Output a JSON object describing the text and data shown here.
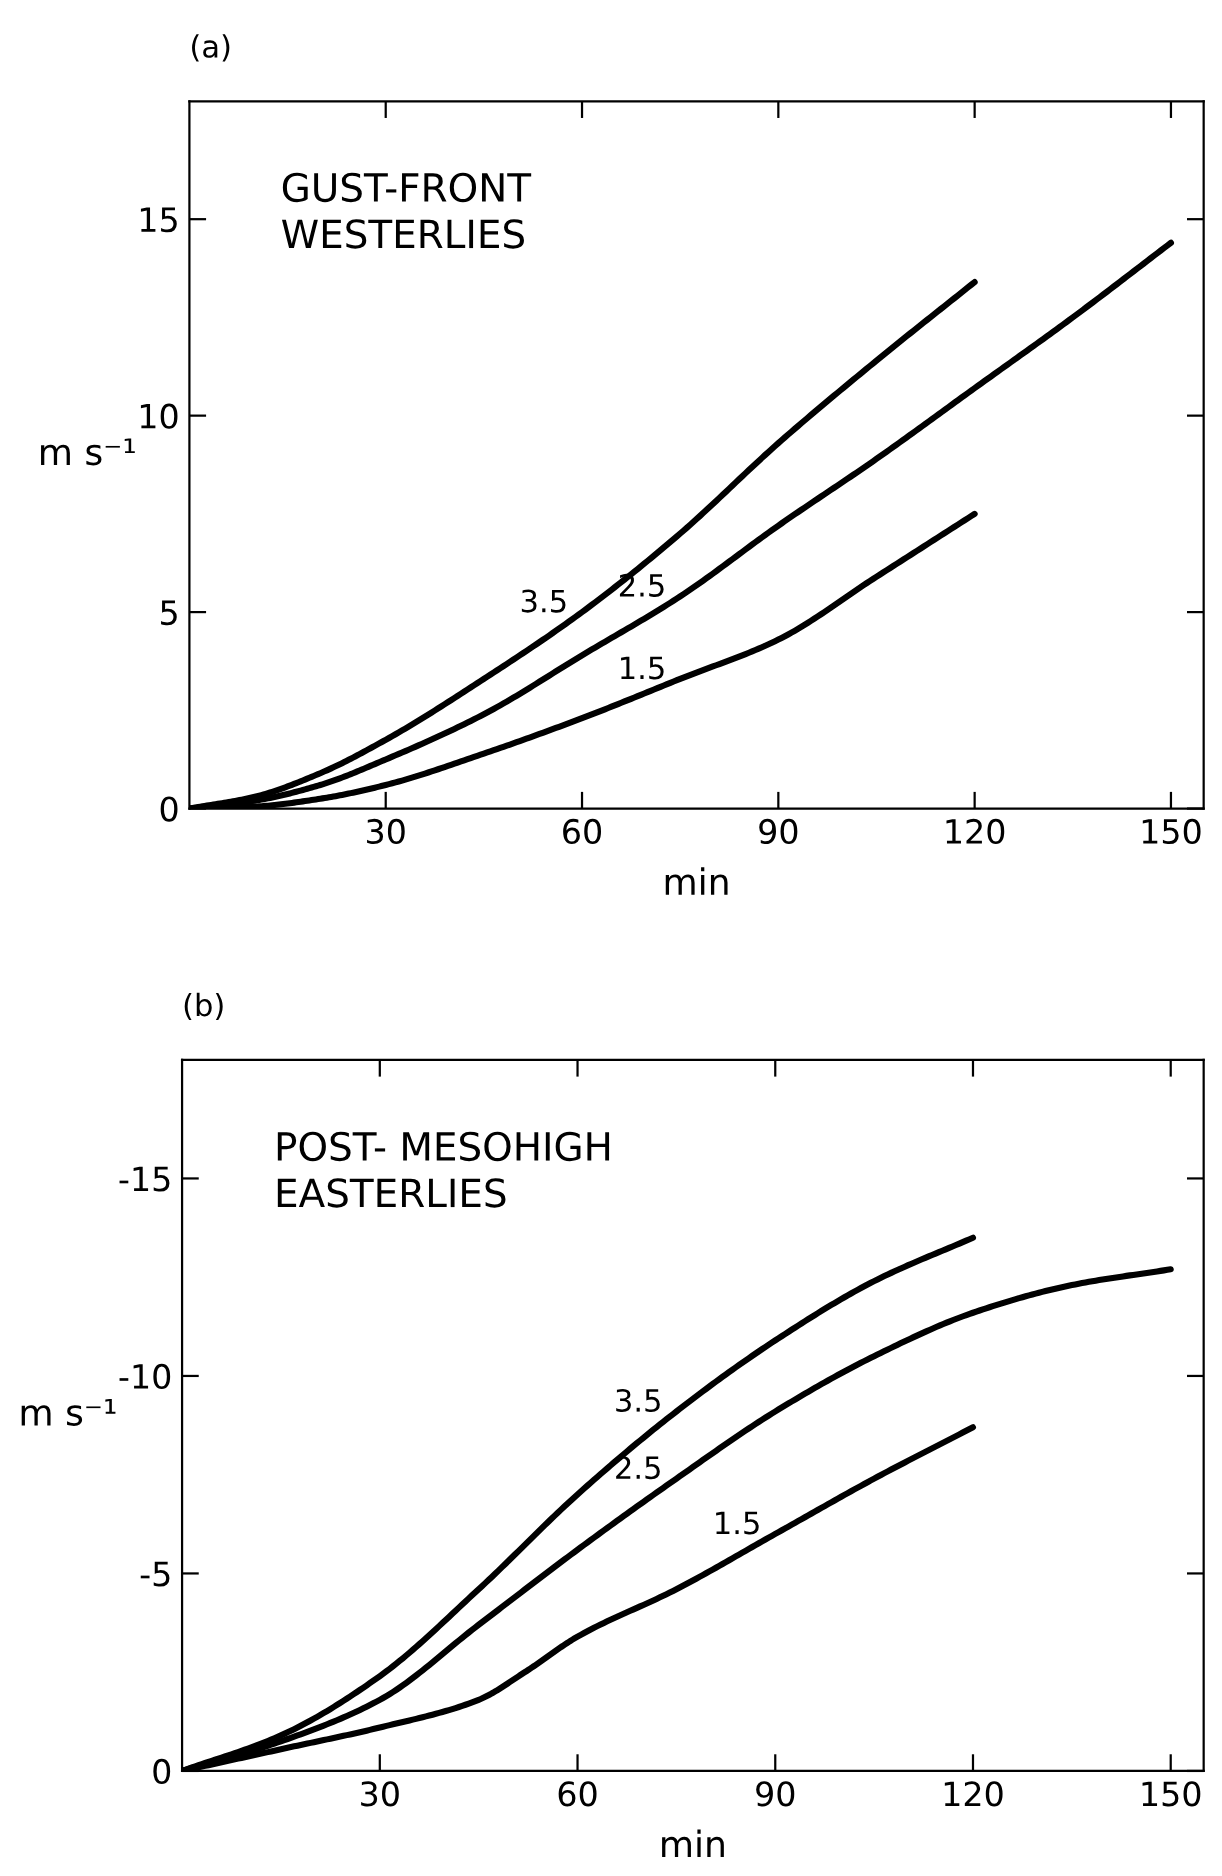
{
  "chart_data": [
    {
      "type": "line",
      "title": "(a)",
      "xlabel": "min",
      "ylabel": "m s⁻¹",
      "xlim": [
        0,
        155
      ],
      "ylim": [
        0,
        18
      ],
      "xticks": [
        30,
        60,
        90,
        120,
        150
      ],
      "yticks": [
        0,
        5,
        10,
        15
      ],
      "grid": false,
      "marker": "none",
      "line_style": "solid",
      "series": [
        {
          "color": "#000000",
          "x": [
            0,
            10,
            20,
            30,
            45,
            60,
            75,
            90,
            105,
            120
          ],
          "values": [
            0,
            0.3,
            0.9,
            1.75,
            3.3,
            5.0,
            7.0,
            9.3,
            11.4,
            13.4
          ]
        },
        {
          "color": "#000000",
          "x": [
            0,
            10,
            20,
            30,
            45,
            60,
            75,
            90,
            105,
            120,
            135,
            150
          ],
          "values": [
            0,
            0.2,
            0.6,
            1.25,
            2.4,
            3.9,
            5.4,
            7.2,
            8.9,
            10.7,
            12.5,
            14.4
          ]
        },
        {
          "color": "#000000",
          "x": [
            0,
            10,
            20,
            30,
            45,
            60,
            75,
            90,
            105,
            120
          ],
          "values": [
            0,
            0.05,
            0.25,
            0.6,
            1.4,
            2.3,
            3.3,
            4.3,
            5.9,
            7.5
          ]
        }
      ],
      "annotations": [
        "GUST-FRONT\nWESTERLIES",
        {
          "text": "3.5",
          "x": 60,
          "y": 5.0
        },
        {
          "text": "2.5",
          "x": 75,
          "y": 5.4
        },
        {
          "text": "1.5",
          "x": 75,
          "y": 3.3
        }
      ]
    },
    {
      "type": "line",
      "title": "(b)",
      "xlabel": "min",
      "ylabel": "m s⁻¹",
      "xlim": [
        0,
        155
      ],
      "ylim": [
        0,
        -18
      ],
      "xticks": [
        30,
        60,
        90,
        120,
        150
      ],
      "yticks": [
        0,
        -5,
        -10,
        -15
      ],
      "grid": false,
      "marker": "none",
      "line_style": "solid",
      "series": [
        {
          "color": "#000000",
          "x": [
            0,
            15,
            30,
            45,
            60,
            75,
            90,
            105,
            120
          ],
          "values": [
            0,
            -0.9,
            -2.4,
            -4.6,
            -7.0,
            -9.1,
            -10.9,
            -12.4,
            -13.5
          ]
        },
        {
          "color": "#000000",
          "x": [
            0,
            15,
            30,
            45,
            60,
            75,
            90,
            105,
            120,
            135,
            150
          ],
          "values": [
            0,
            -0.75,
            -1.8,
            -3.7,
            -5.6,
            -7.4,
            -9.1,
            -10.5,
            -11.6,
            -12.3,
            -12.7
          ]
        },
        {
          "color": "#000000",
          "x": [
            0,
            15,
            30,
            45,
            52,
            60,
            75,
            90,
            105,
            120
          ],
          "values": [
            0,
            -0.55,
            -1.1,
            -1.8,
            -2.5,
            -3.4,
            -4.6,
            -6.0,
            -7.4,
            -8.7
          ]
        }
      ],
      "annotations": [
        "POST- MESOHIGH\nEASTERLIES",
        {
          "text": "3.5",
          "x": 75,
          "y": -9.1
        },
        {
          "text": "2.5",
          "x": 75,
          "y": -7.4
        },
        {
          "text": "1.5",
          "x": 90,
          "y": -6.0
        }
      ]
    }
  ]
}
